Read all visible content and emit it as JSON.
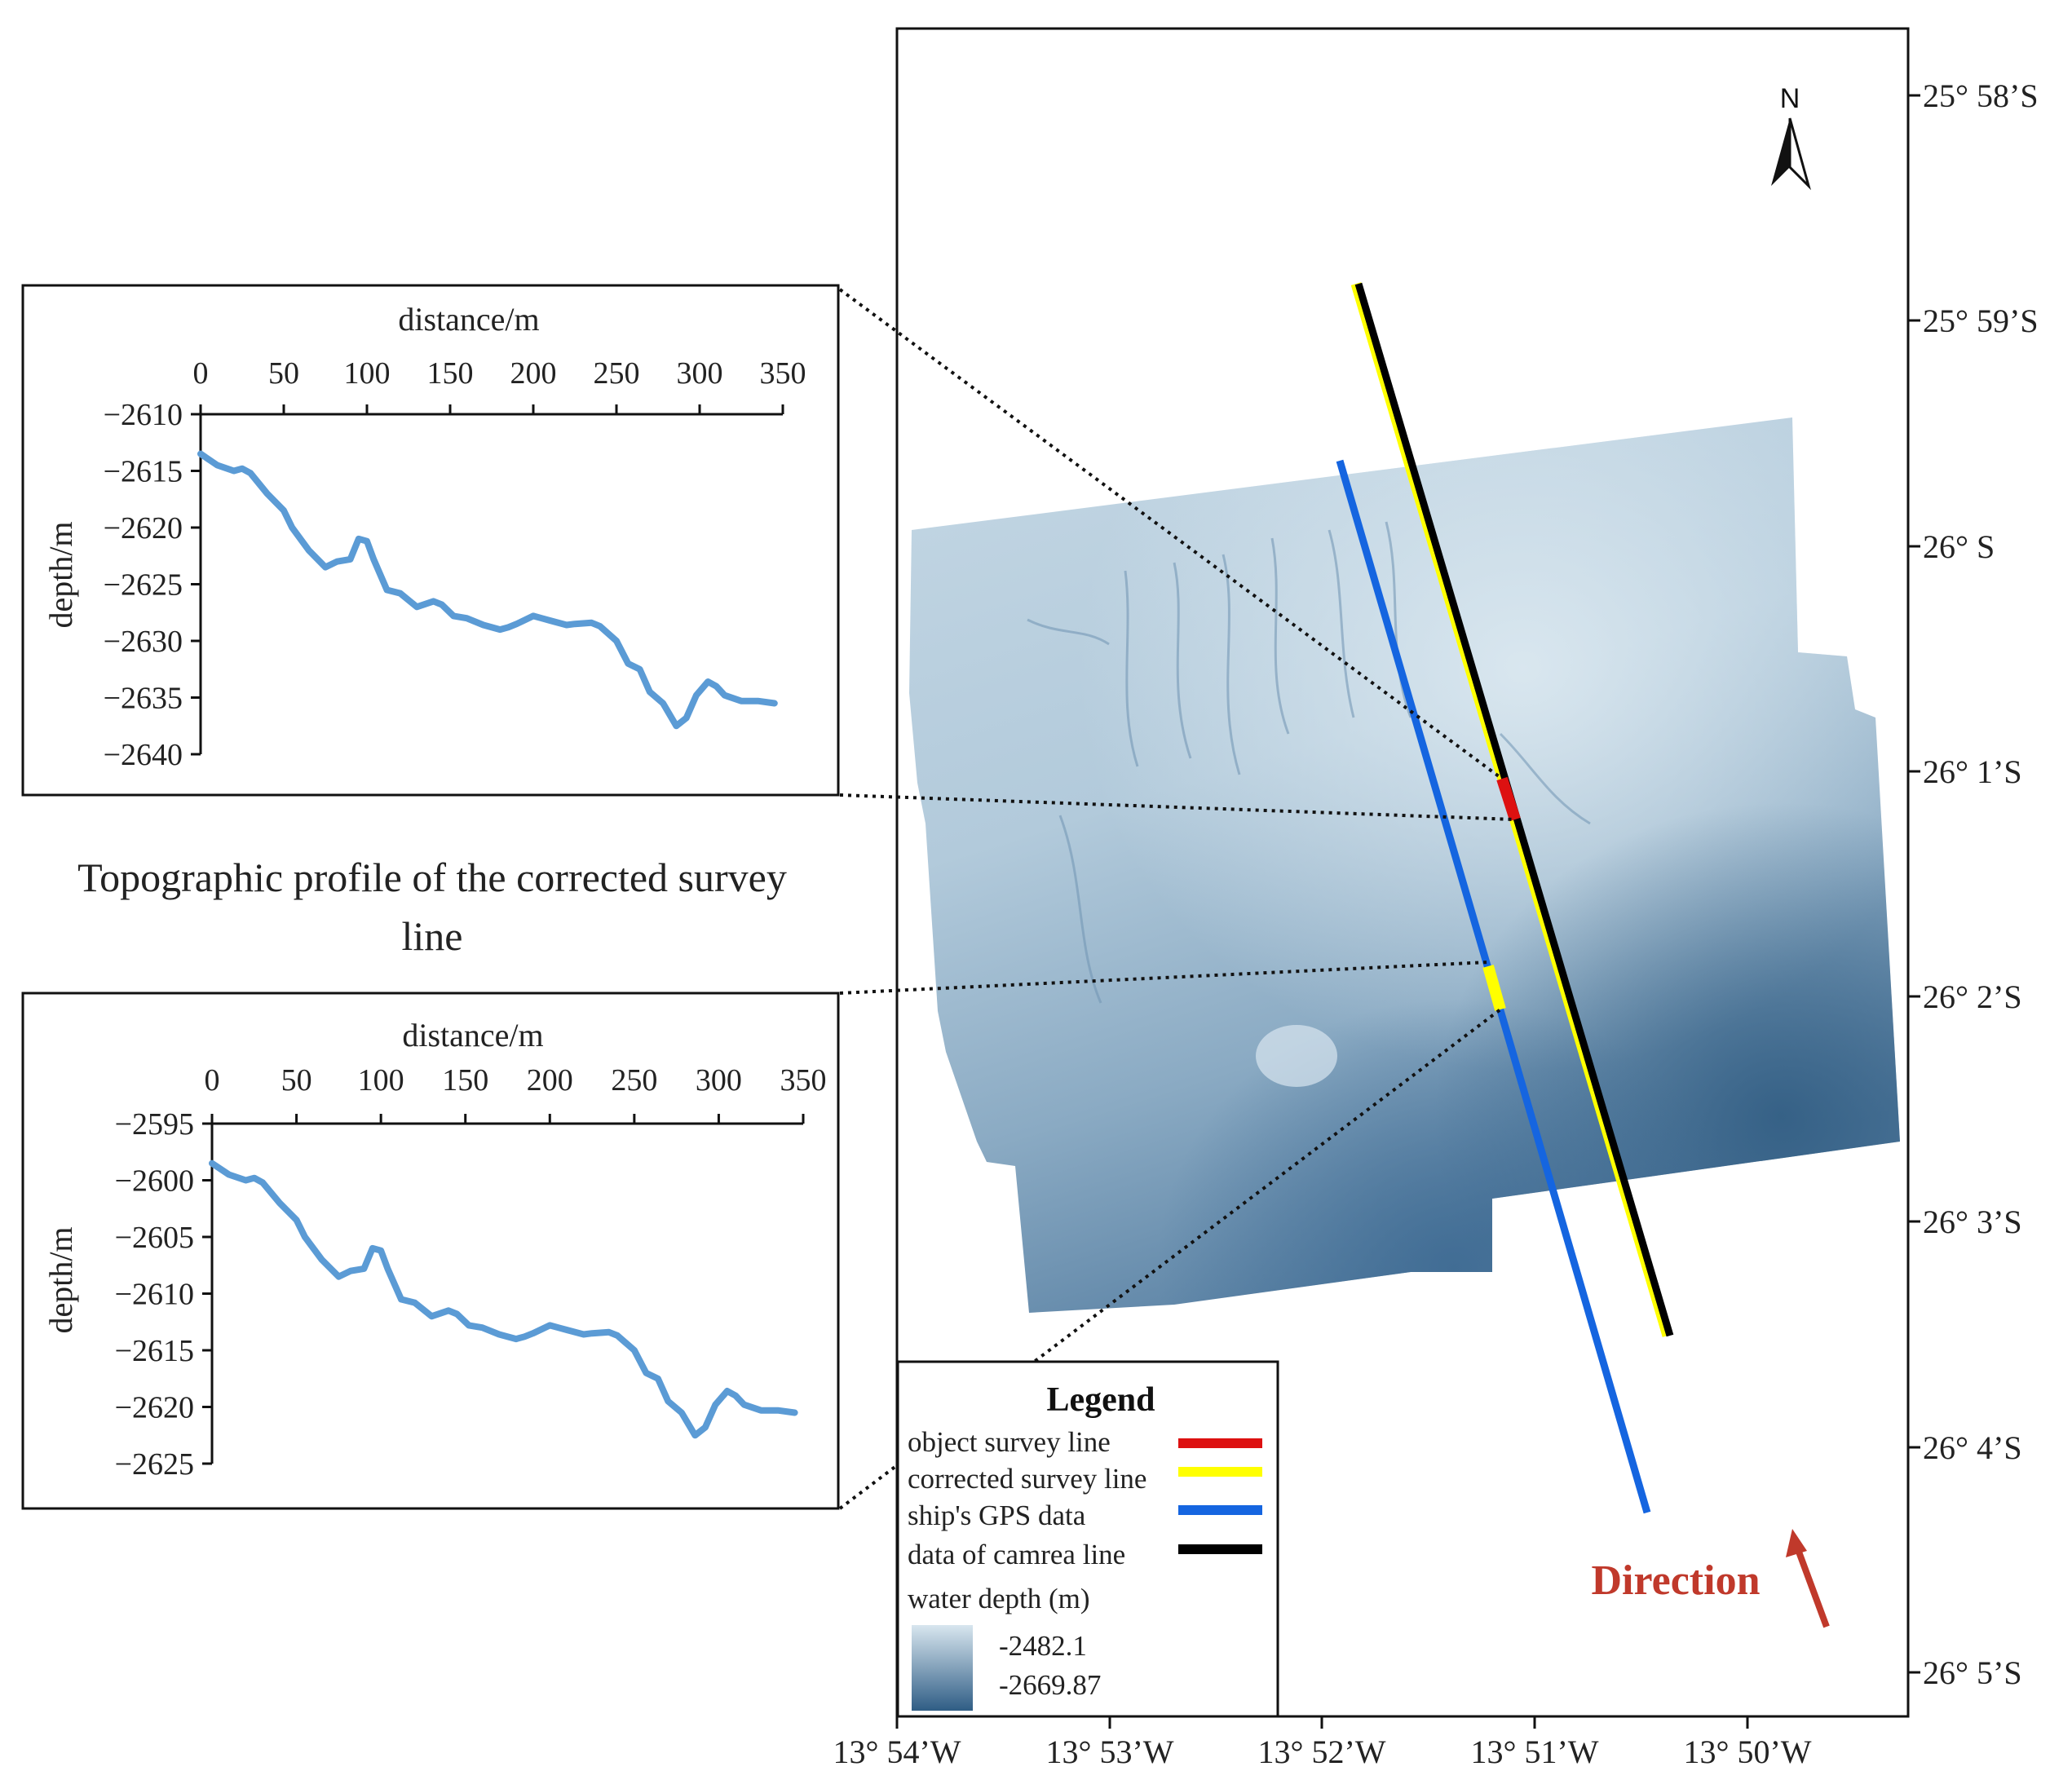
{
  "caption": "Topographic profile of the corrected survey line",
  "profiles": [
    {
      "xlabel": "distance/m",
      "ylabel": "depth/m",
      "x_ticks": [
        "0",
        "50",
        "100",
        "150",
        "200",
        "250",
        "300",
        "350"
      ],
      "y_ticks": [
        "−2610",
        "−2615",
        "−2620",
        "−2625",
        "−2630",
        "−2635",
        "−2640"
      ],
      "chart_data": {
        "type": "line",
        "xlim": [
          0,
          350
        ],
        "ylim": [
          -2640,
          -2610
        ],
        "x": [
          0,
          10,
          20,
          25,
          30,
          40,
          50,
          55,
          65,
          75,
          82,
          90,
          95,
          100,
          104,
          112,
          120,
          130,
          140,
          145,
          152,
          160,
          170,
          180,
          185,
          190,
          200,
          205,
          210,
          220,
          225,
          235,
          240,
          250,
          257,
          264,
          270,
          278,
          286,
          292,
          298,
          305,
          310,
          315,
          325,
          335,
          345
        ],
        "y": [
          -2613.5,
          -2614.5,
          -2615,
          -2614.8,
          -2615.2,
          -2617,
          -2618.5,
          -2620,
          -2622,
          -2623.5,
          -2623,
          -2622.8,
          -2621,
          -2621.2,
          -2622.8,
          -2625.5,
          -2625.8,
          -2627,
          -2626.5,
          -2626.8,
          -2627.8,
          -2628,
          -2628.6,
          -2629,
          -2628.8,
          -2628.5,
          -2627.8,
          -2628,
          -2628.2,
          -2628.6,
          -2628.5,
          -2628.4,
          -2628.7,
          -2630,
          -2632,
          -2632.5,
          -2634.5,
          -2635.5,
          -2637.5,
          -2636.8,
          -2634.8,
          -2633.6,
          -2634,
          -2634.8,
          -2635.3,
          -2635.3,
          -2635.5
        ],
        "color": "#5b9bd5"
      }
    },
    {
      "xlabel": "distance/m",
      "ylabel": "depth/m",
      "x_ticks": [
        "0",
        "50",
        "100",
        "150",
        "200",
        "250",
        "300",
        "350"
      ],
      "y_ticks": [
        "−2595",
        "−2600",
        "−2605",
        "−2610",
        "−2615",
        "−2620",
        "−2625"
      ],
      "chart_data": {
        "type": "line",
        "xlim": [
          0,
          350
        ],
        "ylim": [
          -2625,
          -2595
        ],
        "x": [
          0,
          10,
          20,
          25,
          30,
          40,
          50,
          55,
          65,
          75,
          82,
          90,
          95,
          100,
          104,
          112,
          120,
          130,
          140,
          145,
          152,
          160,
          170,
          180,
          185,
          190,
          200,
          205,
          210,
          220,
          225,
          235,
          240,
          250,
          257,
          264,
          270,
          278,
          286,
          292,
          298,
          305,
          310,
          315,
          325,
          335,
          345
        ],
        "y": [
          -2598.5,
          -2599.5,
          -2600,
          -2599.8,
          -2600.2,
          -2602,
          -2603.5,
          -2605,
          -2607,
          -2608.5,
          -2608,
          -2607.8,
          -2606,
          -2606.2,
          -2607.8,
          -2610.5,
          -2610.8,
          -2612,
          -2611.5,
          -2611.8,
          -2612.8,
          -2613,
          -2613.6,
          -2614,
          -2613.8,
          -2613.5,
          -2612.8,
          -2613,
          -2613.2,
          -2613.6,
          -2613.5,
          -2613.4,
          -2613.7,
          -2615,
          -2617,
          -2617.5,
          -2619.5,
          -2620.5,
          -2622.5,
          -2621.8,
          -2619.8,
          -2618.6,
          -2619,
          -2619.8,
          -2620.3,
          -2620.3,
          -2620.5
        ],
        "color": "#5b9bd5"
      }
    }
  ],
  "map": {
    "north_label": "N",
    "lat_labels": [
      "25°  58’S",
      "25°  59’S",
      "26°  S",
      "26°  1’S",
      "26°  2’S",
      "26°  3’S",
      "26°  4’S",
      "26°  5’S"
    ],
    "lon_labels": [
      "13°  54’W",
      "13°  53’W",
      "13°  52’W",
      "13°  51’W",
      "13°  50’W"
    ],
    "direction_label": "Direction",
    "direction_color": "#c0392b",
    "legend": {
      "title": "Legend",
      "items": [
        {
          "label": "object survey line",
          "color": "#dd1111"
        },
        {
          "label": "corrected survey line",
          "color": "#ffff00"
        },
        {
          "label": "ship's GPS data",
          "color": "#1565e0"
        },
        {
          "label": "data of camrea line",
          "color": "#000000"
        }
      ],
      "depth_title": "water depth (m)",
      "depth_max": "-2482.1",
      "depth_min": "-2669.87",
      "depth_color_high": "#d8e6ef",
      "depth_color_low": "#2f5d85"
    }
  }
}
